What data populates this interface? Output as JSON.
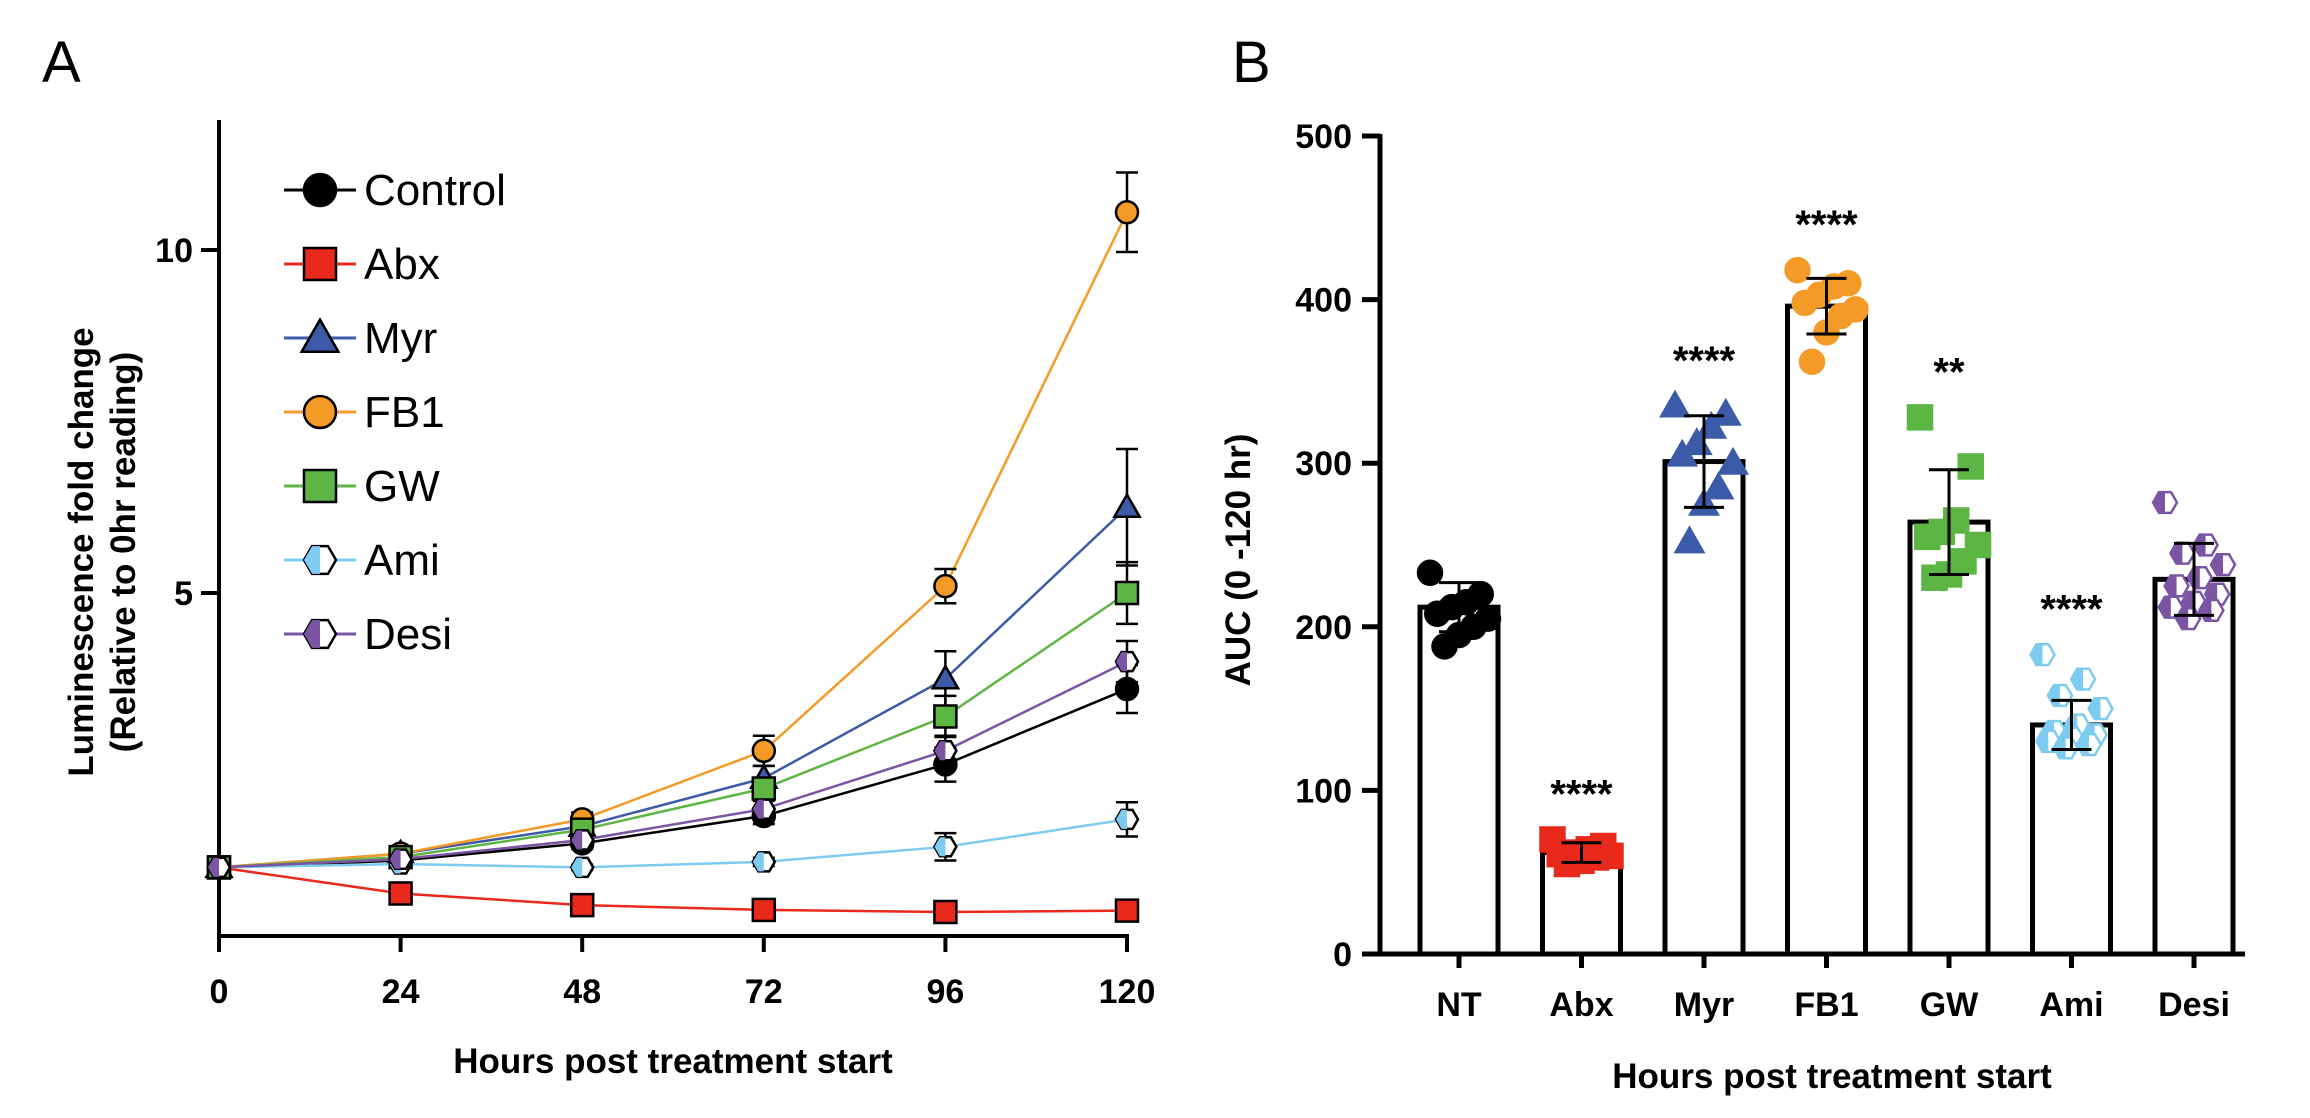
{
  "panels": {
    "a_label": "A",
    "b_label": "B"
  },
  "chart_data": [
    {
      "type": "line",
      "panel": "A",
      "xlabel": "Hours post treatment start",
      "ylabel_line1": "Luminescence fold change",
      "ylabel_line2": "(Relative to 0hr reading)",
      "x": [
        0,
        24,
        48,
        72,
        96,
        120
      ],
      "x_ticks": [
        "0",
        "24",
        "48",
        "72",
        "96",
        "120"
      ],
      "y_ticks": [
        "5",
        "10"
      ],
      "y_tick_values": [
        5,
        10
      ],
      "ylim": [
        0,
        12
      ],
      "xlim": [
        0,
        120
      ],
      "legend_position": "top-left",
      "series": [
        {
          "name": "Control",
          "key": "control",
          "color": "#000000",
          "marker": "circle",
          "values": [
            1.0,
            1.1,
            1.35,
            1.75,
            2.5,
            3.6
          ],
          "errors": [
            0,
            0.05,
            0.08,
            0.12,
            0.25,
            0.35
          ]
        },
        {
          "name": "Abx",
          "key": "abx",
          "color": "#e8291c",
          "marker": "square",
          "values": [
            1.0,
            0.62,
            0.45,
            0.38,
            0.35,
            0.37
          ],
          "errors": [
            0,
            0.03,
            0.03,
            0.03,
            0.03,
            0.03
          ]
        },
        {
          "name": "Myr",
          "key": "myr",
          "color": "#3b5aa8",
          "marker": "triangle",
          "values": [
            1.0,
            1.2,
            1.6,
            2.3,
            3.75,
            6.25
          ],
          "errors": [
            0,
            0.05,
            0.1,
            0.18,
            0.4,
            0.85
          ]
        },
        {
          "name": "FB1",
          "key": "fb1",
          "color": "#f39a27",
          "marker": "circle",
          "values": [
            1.0,
            1.2,
            1.7,
            2.7,
            5.1,
            10.55
          ],
          "errors": [
            0,
            0.05,
            0.1,
            0.22,
            0.25,
            0.58
          ]
        },
        {
          "name": "GW",
          "key": "gw",
          "color": "#5db544",
          "marker": "square",
          "values": [
            1.0,
            1.15,
            1.55,
            2.15,
            3.2,
            5.0
          ],
          "errors": [
            0,
            0.05,
            0.1,
            0.15,
            0.3,
            0.45
          ]
        },
        {
          "name": "Ami",
          "key": "ami",
          "color": "#7dcbf0",
          "marker": "hexagon",
          "values": [
            1.0,
            1.05,
            1.0,
            1.08,
            1.3,
            1.7
          ],
          "errors": [
            0,
            0.04,
            0.04,
            0.06,
            0.2,
            0.25
          ]
        },
        {
          "name": "Desi",
          "key": "desi",
          "color": "#7b55a4",
          "marker": "hexagon",
          "values": [
            1.0,
            1.12,
            1.4,
            1.85,
            2.7,
            4.0
          ],
          "errors": [
            0,
            0.05,
            0.08,
            0.12,
            0.22,
            0.3
          ]
        }
      ]
    },
    {
      "type": "bar",
      "panel": "B",
      "xlabel": "Hours post treatment start",
      "ylabel": "AUC (0 -120 hr)",
      "ylim": [
        0,
        500
      ],
      "y_ticks": [
        "0",
        "100",
        "200",
        "300",
        "400",
        "500"
      ],
      "y_tick_values": [
        0,
        100,
        200,
        300,
        400,
        500
      ],
      "categories": [
        "NT",
        "Abx",
        "Myr",
        "FB1",
        "GW",
        "Ami",
        "Desi"
      ],
      "values": [
        212,
        62,
        301,
        396,
        264,
        140,
        229
      ],
      "sd": [
        15,
        6,
        28,
        17,
        32,
        15,
        22
      ],
      "significance": [
        "",
        "****",
        "****",
        "****",
        "**",
        "****",
        ""
      ],
      "colors": [
        "#000000",
        "#e8291c",
        "#3b5aa8",
        "#f39a27",
        "#5db544",
        "#7dcbf0",
        "#7b55a4"
      ],
      "markers": [
        "circle",
        "square",
        "triangle",
        "circle",
        "square",
        "hexagon",
        "hexagon"
      ],
      "points": [
        [
          233,
          220,
          215,
          212,
          208,
          205,
          200,
          195,
          188
        ],
        [
          70,
          66,
          64,
          62,
          61,
          60,
          59,
          57,
          55
        ],
        [
          335,
          330,
          322,
          312,
          305,
          300,
          285,
          275,
          252
        ],
        [
          418,
          410,
          408,
          403,
          398,
          394,
          390,
          380,
          362
        ],
        [
          328,
          298,
          265,
          258,
          255,
          250,
          240,
          232,
          230
        ],
        [
          183,
          168,
          158,
          150,
          140,
          136,
          134,
          132,
          130,
          128,
          126
        ],
        [
          276,
          250,
          245,
          238,
          230,
          225,
          220,
          215,
          212,
          210,
          205
        ]
      ]
    }
  ]
}
